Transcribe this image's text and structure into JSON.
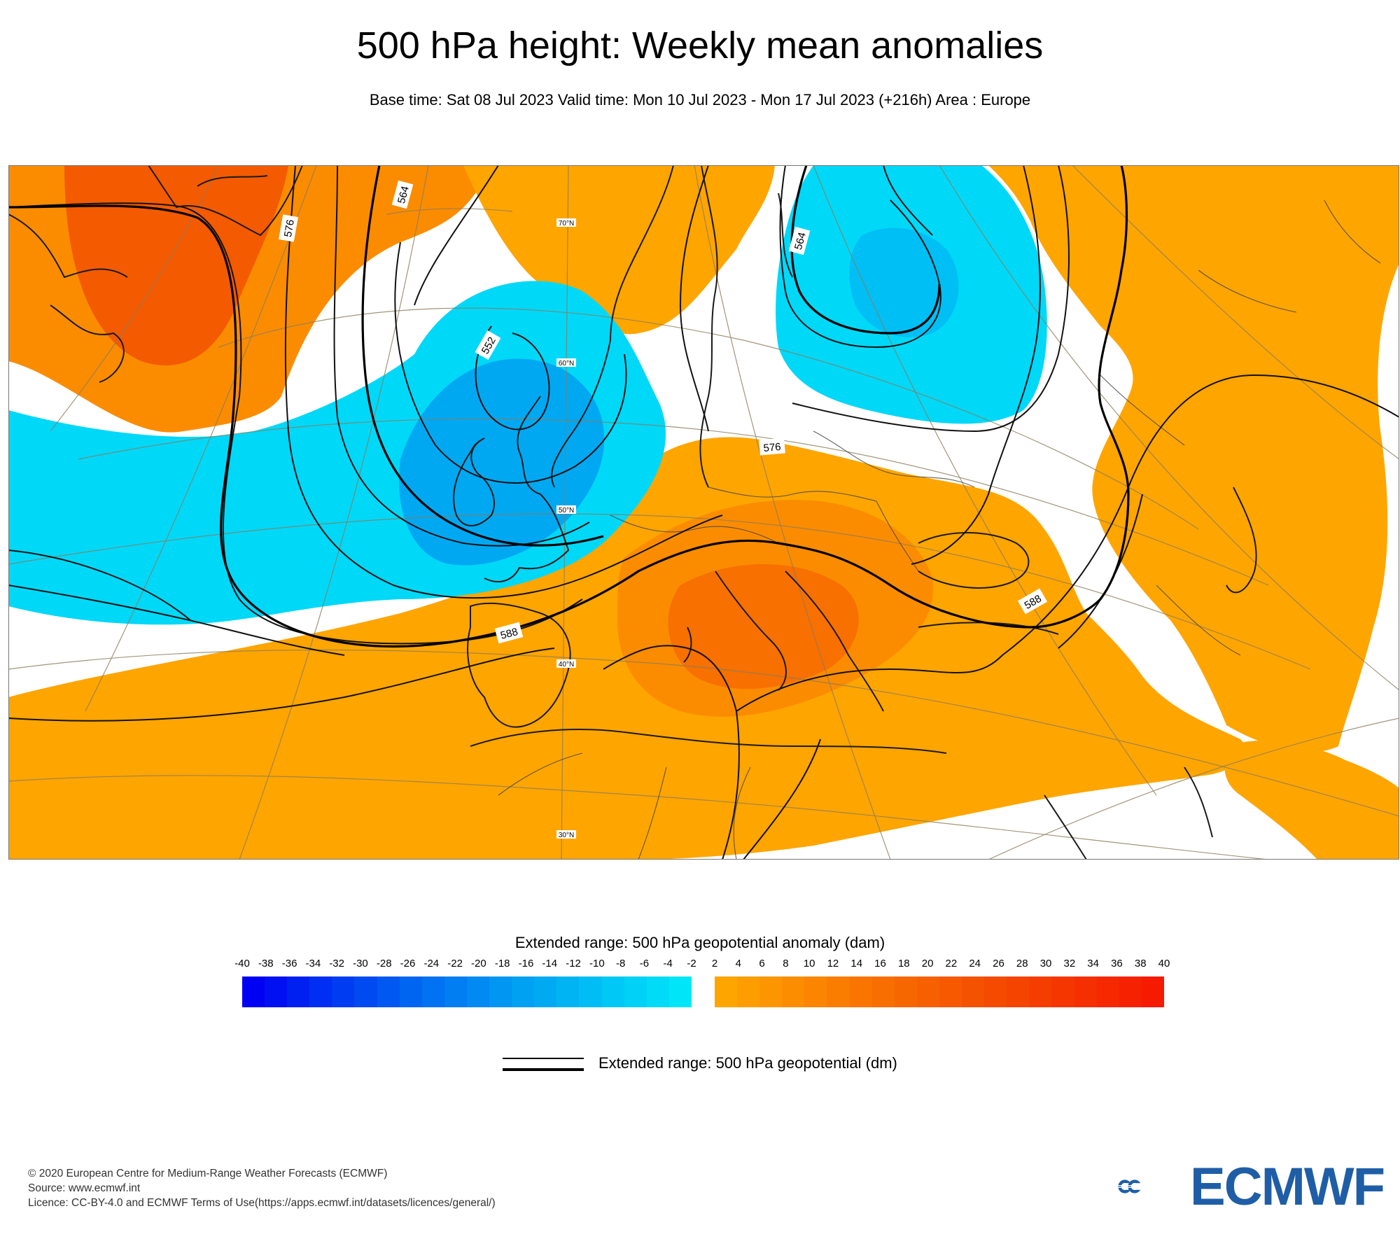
{
  "title": "500 hPa height: Weekly mean anomalies",
  "subtitle": "Base time: Sat 08 Jul 2023 Valid time: Mon 10 Jul 2023 - Mon 17 Jul 2023 (+216h) Area : Europe",
  "map": {
    "contour_labels": [
      "576",
      "564",
      "552",
      "564",
      "576",
      "588",
      "588"
    ],
    "lat_labels": [
      "70°N",
      "60°N",
      "50°N",
      "40°N",
      "30°N"
    ],
    "colors": {
      "neg_light": "#00d8f8",
      "neg_mid": "#00bff5",
      "neg_dark": "#00a8f2",
      "pos_light": "#ffa500",
      "pos_mid": "#fb8c00",
      "pos_dark": "#f77000",
      "pos_strong": "#f45a00",
      "contour": "#111111",
      "coast": "#222222",
      "grid": "#8a7c5c"
    }
  },
  "colorbar": {
    "title": "Extended range: 500 hPa geopotential anomaly (dam)",
    "neg_ticks": [
      "-40",
      "-38",
      "-36",
      "-34",
      "-32",
      "-30",
      "-28",
      "-26",
      "-24",
      "-22",
      "-20",
      "-18",
      "-16",
      "-14",
      "-12",
      "-10",
      "-8",
      "-6",
      "-4",
      "-2"
    ],
    "pos_ticks": [
      "2",
      "4",
      "6",
      "8",
      "10",
      "12",
      "14",
      "16",
      "18",
      "20",
      "22",
      "24",
      "26",
      "28",
      "30",
      "32",
      "34",
      "36",
      "38",
      "40"
    ],
    "neg_colors": [
      "#0000f2",
      "#0010f2",
      "#0020f2",
      "#002ef2",
      "#003cf2",
      "#004af2",
      "#0058f2",
      "#0066f2",
      "#0072f2",
      "#007ef2",
      "#008af2",
      "#0096f2",
      "#00a0f2",
      "#00aaf3",
      "#00b4f4",
      "#00bef5",
      "#00c8f6",
      "#00d2f7",
      "#00dcf8",
      "#00e6f9"
    ],
    "pos_colors": [
      "#ffa500",
      "#fe9d00",
      "#fd9500",
      "#fc8d00",
      "#fb8500",
      "#fa7d00",
      "#f97500",
      "#f86e00",
      "#f76700",
      "#f66000",
      "#f65900",
      "#f55200",
      "#f54b00",
      "#f54400",
      "#f53d00",
      "#f53600",
      "#f52f00",
      "#f52800",
      "#f52100",
      "#f51a00"
    ]
  },
  "legend": {
    "label": "Extended range: 500 hPa geopotential (dm)"
  },
  "credits": {
    "line1": "© 2020 European Centre for Medium-Range Weather Forecasts (ECMWF)",
    "line2": "Source: www.ecmwf.int",
    "line3": "Licence: CC-BY-4.0 and ECMWF Terms of Use(https://apps.ecmwf.int/datasets/licences/general/)"
  },
  "logo": {
    "text": "ECMWF",
    "color": "#1f5ea6"
  }
}
